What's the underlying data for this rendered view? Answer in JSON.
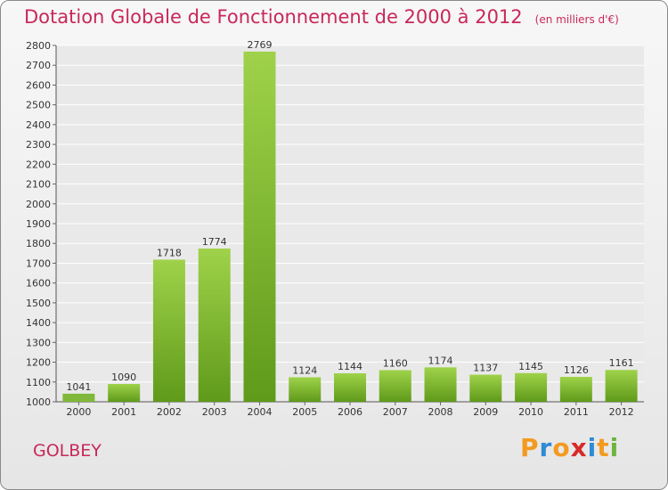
{
  "title": "Dotation Globale de Fonctionnement de 2000 à 2012",
  "subtitle": "(en milliers d'€)",
  "city": "GOLBEY",
  "logo": {
    "letters": [
      "P",
      "r",
      "o",
      "x",
      "i",
      "t",
      "i"
    ],
    "colors": [
      "#f39a1f",
      "#2e8bd4",
      "#f39a1f",
      "#d82a2a",
      "#2e8bd4",
      "#f39a1f",
      "#6cb43f"
    ]
  },
  "colors": {
    "title": "#c8285a",
    "bar_light": "#9fd24a",
    "bar_dark": "#5f9a1a",
    "bar_2000": "#7fb83a"
  },
  "chart_data": {
    "type": "bar",
    "categories": [
      "2000",
      "2001",
      "2002",
      "2003",
      "2004",
      "2005",
      "2006",
      "2007",
      "2008",
      "2009",
      "2010",
      "2011",
      "2012"
    ],
    "values": [
      1041,
      1090,
      1718,
      1774,
      2769,
      1124,
      1144,
      1160,
      1174,
      1137,
      1145,
      1126,
      1161
    ],
    "title": "Dotation Globale de Fonctionnement de 2000 à 2012",
    "subtitle": "(en milliers d'€)",
    "ylim": [
      1000,
      2800
    ],
    "yticks": [
      1000,
      1100,
      1200,
      1300,
      1400,
      1500,
      1600,
      1700,
      1800,
      1900,
      2000,
      2100,
      2200,
      2300,
      2400,
      2500,
      2600,
      2700,
      2800
    ],
    "grid": true
  }
}
